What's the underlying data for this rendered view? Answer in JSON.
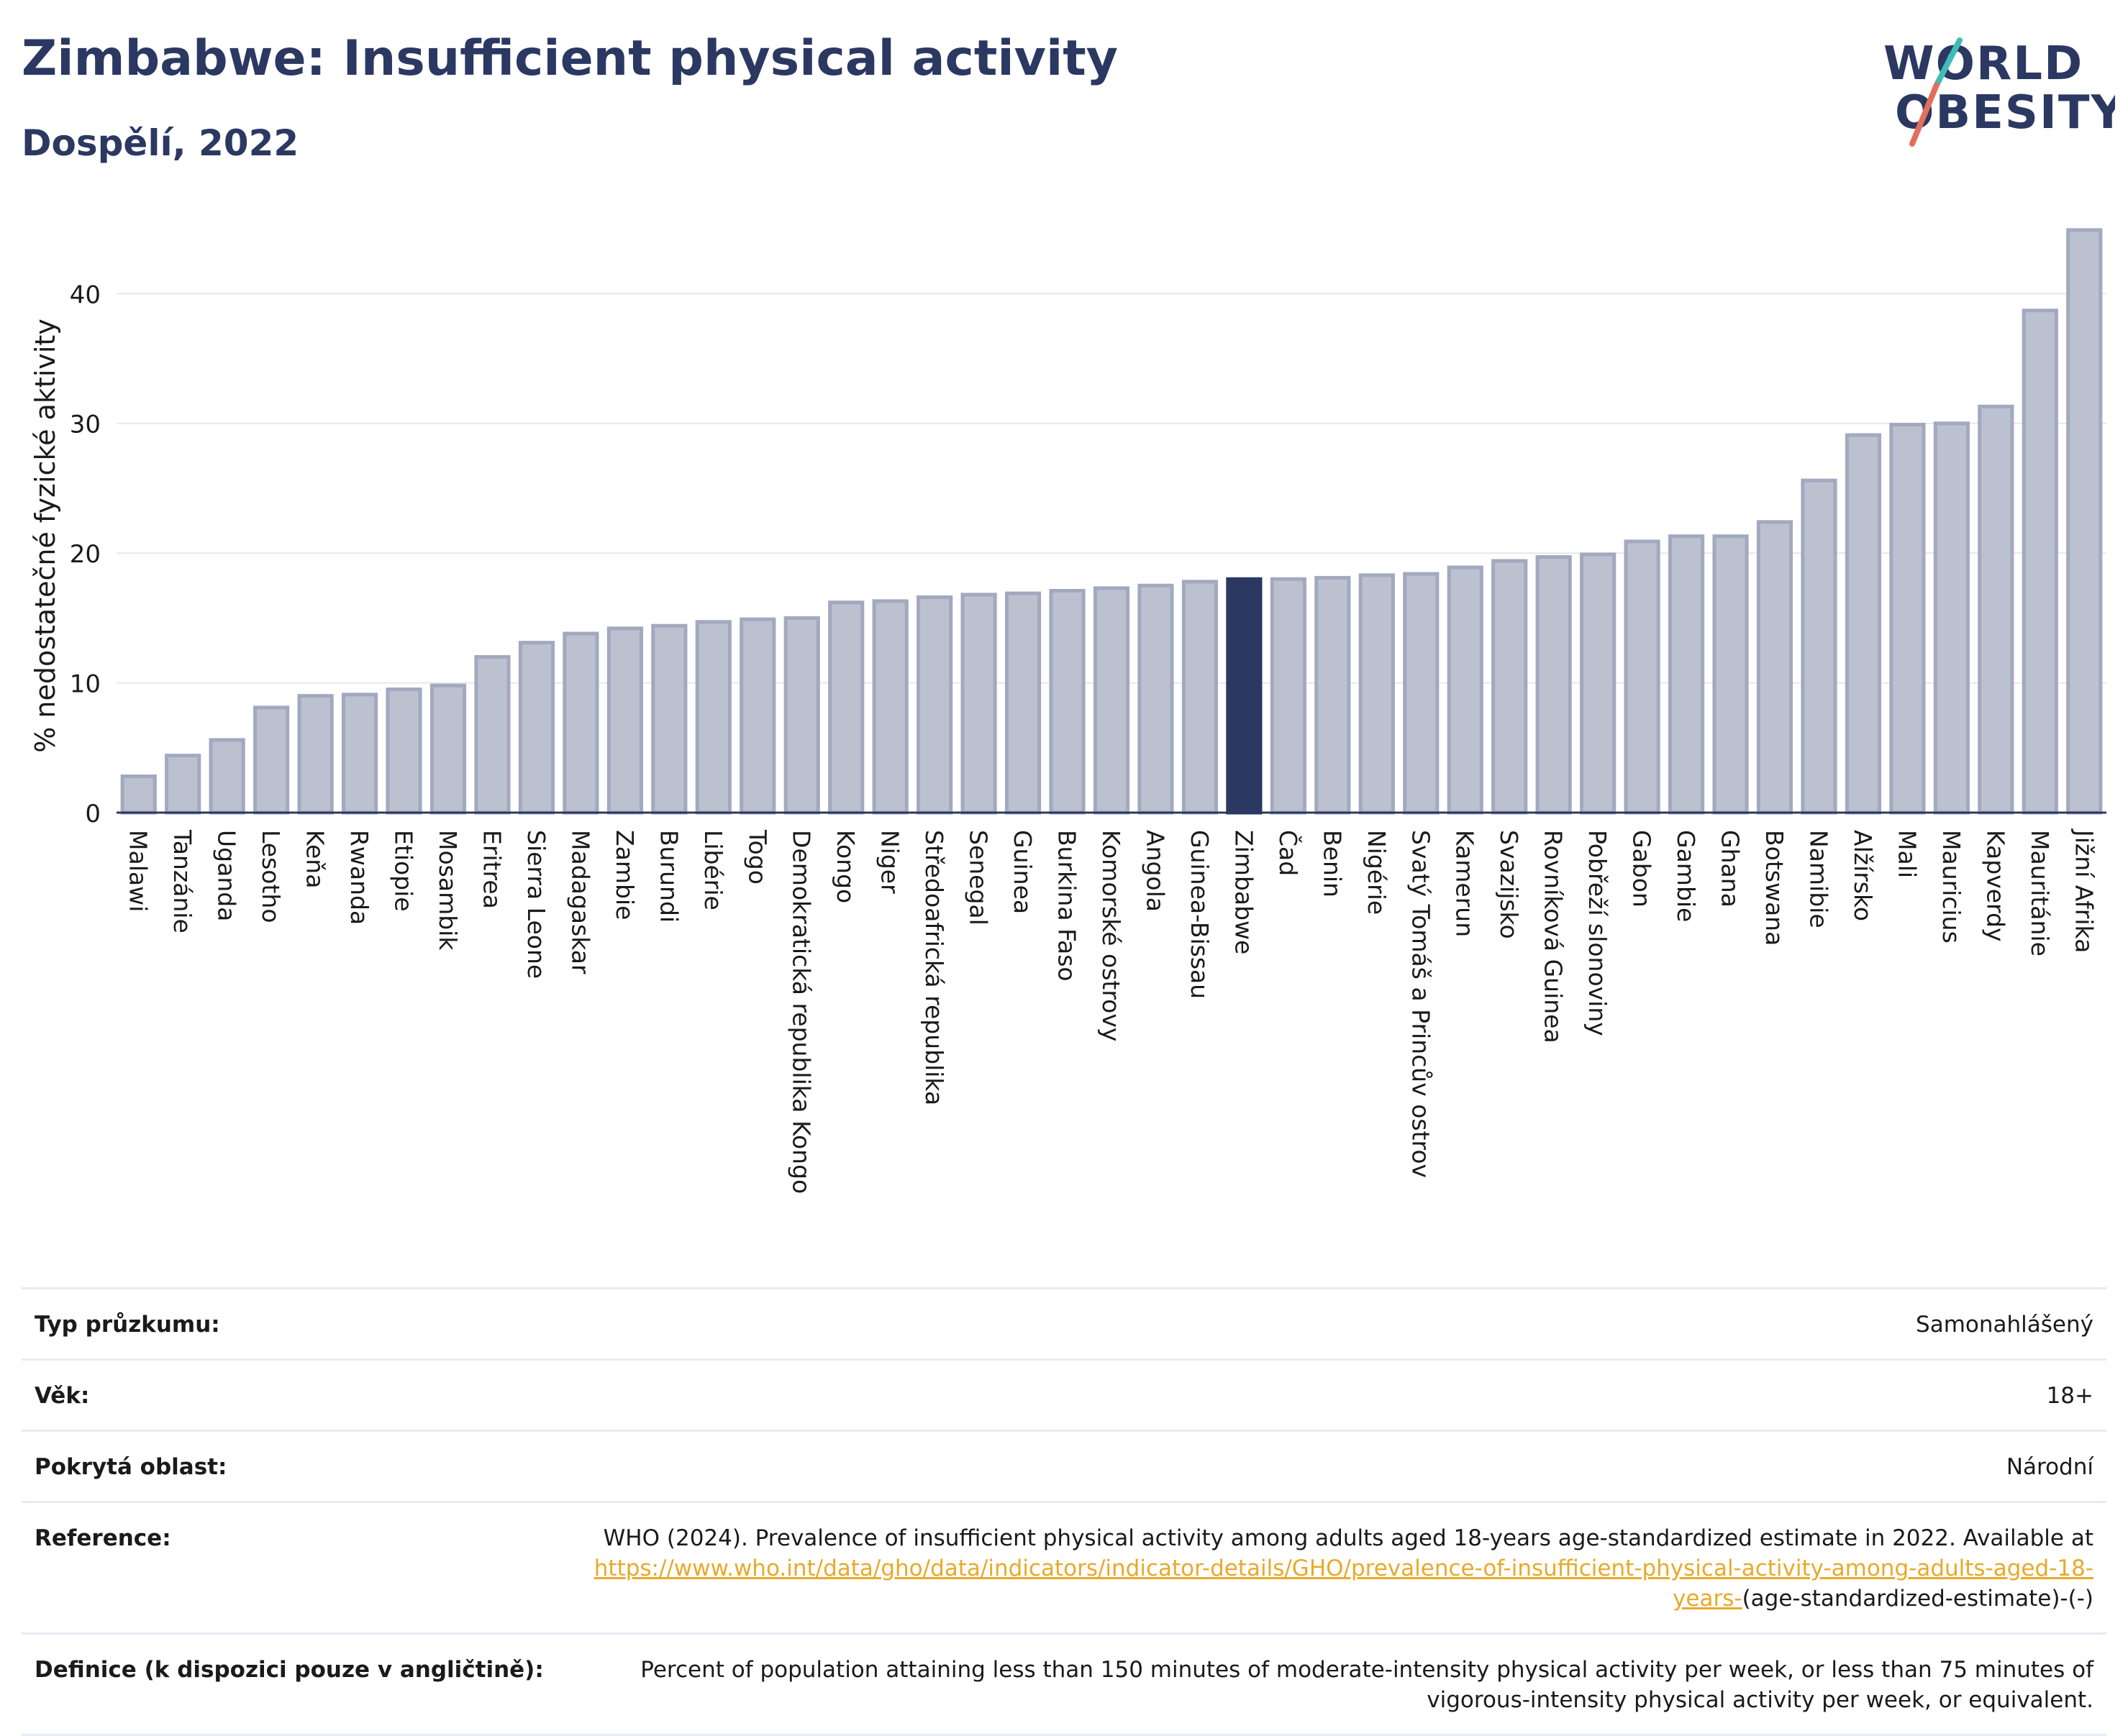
{
  "header": {
    "title": "Zimbabwe: Insufficient physical activity",
    "subtitle": "Dospělí, 2022"
  },
  "logo": {
    "line1": "WORLD",
    "line2": "OBESITY",
    "name": "world-obesity-logo"
  },
  "colors": {
    "title": "#2b3862",
    "bar_default": "#bcc1d0",
    "bar_border": "#a2a9bf",
    "bar_highlight": "#2b3862",
    "link": "#e8a92b",
    "logo_teal": "#3dbdb8",
    "logo_coral": "#e26f5c"
  },
  "chart_data": {
    "type": "bar",
    "ylabel": "% nedostatečné fyzické aktivity",
    "ylim": [
      0,
      46
    ],
    "yticks": [
      0,
      10,
      20,
      30,
      40
    ],
    "grid": true,
    "highlight": "Zimbabwe",
    "categories": [
      "Malawi",
      "Tanzánie",
      "Uganda",
      "Lesotho",
      "Keňa",
      "Rwanda",
      "Etiopie",
      "Mosambik",
      "Eritrea",
      "Sierra Leone",
      "Madagaskar",
      "Zambie",
      "Burundi",
      "Libérie",
      "Togo",
      "Demokratická republika Kongo",
      "Kongo",
      "Niger",
      "Středoafrická republika",
      "Senegal",
      "Guinea",
      "Burkina Faso",
      "Komorské ostrovy",
      "Angola",
      "Guinea-Bissau",
      "Zimbabwe",
      "Čad",
      "Benin",
      "Nigérie",
      "Svatý Tomáš a Princův ostrov",
      "Kamerun",
      "Svazijsko",
      "Rovníková Guinea",
      "Pobřeží slonoviny",
      "Gabon",
      "Gambie",
      "Ghana",
      "Botswana",
      "Namibie",
      "Alžírsko",
      "Mali",
      "Mauricius",
      "Kapverdy",
      "Mauritánie",
      "Jižní Afrika"
    ],
    "values": [
      2.8,
      4.4,
      5.6,
      8.1,
      9.0,
      9.1,
      9.5,
      9.8,
      12.0,
      13.1,
      13.8,
      14.2,
      14.4,
      14.7,
      14.9,
      15.0,
      16.2,
      16.3,
      16.6,
      16.8,
      16.9,
      17.1,
      17.3,
      17.5,
      17.8,
      18.0,
      18.0,
      18.1,
      18.3,
      18.4,
      18.9,
      19.4,
      19.7,
      19.9,
      20.9,
      21.3,
      21.3,
      22.4,
      25.6,
      29.1,
      29.9,
      30.0,
      31.3,
      38.7,
      44.9
    ]
  },
  "info": {
    "survey_label": "Typ průzkumu:",
    "survey_value": "Samonahlášený",
    "age_label": "Věk:",
    "age_value": "18+",
    "coverage_label": "Pokrytá oblast:",
    "coverage_value": "Národní",
    "reference_label": "Reference:",
    "reference_text": "WHO (2024). Prevalence of insufficient physical activity among adults aged 18-years age-standardized estimate in 2022. Available at ",
    "reference_link": "https://www.who.int/data/gho/data/indicators/indicator-details/GHO/prevalence-of-insufficient-physical-activity-among-adults-aged-18-years-",
    "reference_suffix": "(age-standardized-estimate)-(-)",
    "definition_label": "Definice (k dispozici pouze v angličtině):",
    "definition_value": "Percent of population attaining less than 150 minutes of moderate-intensity physical activity per week, or less than 75 minutes of vigorous-intensity physical activity per week, or equivalent."
  }
}
